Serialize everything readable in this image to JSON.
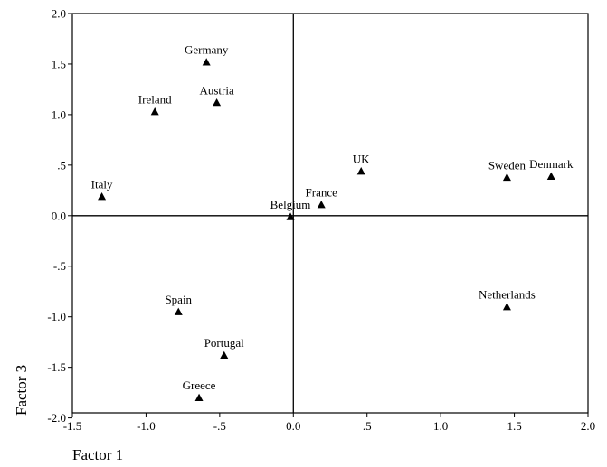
{
  "chart_data": {
    "type": "scatter",
    "xlabel": "Factor 1",
    "ylabel": "Factor 3",
    "xlim": [
      -1.5,
      2.0
    ],
    "ylim": [
      -1.95,
      2.0
    ],
    "x_ticks": [
      {
        "value": -1.5,
        "label": "-1.5"
      },
      {
        "value": -1.0,
        "label": "-1.0"
      },
      {
        "value": -0.5,
        "label": "-.5"
      },
      {
        "value": 0.0,
        "label": "0.0"
      },
      {
        "value": 0.5,
        "label": ".5"
      },
      {
        "value": 1.0,
        "label": "1.0"
      },
      {
        "value": 1.5,
        "label": "1.5"
      },
      {
        "value": 2.0,
        "label": "2.0"
      }
    ],
    "y_ticks": [
      {
        "value": 2.0,
        "label": "2.0"
      },
      {
        "value": 1.5,
        "label": "1.5"
      },
      {
        "value": 1.0,
        "label": "1.0"
      },
      {
        "value": 0.5,
        "label": ".5"
      },
      {
        "value": 0.0,
        "label": "0.0"
      },
      {
        "value": -0.5,
        "label": "-.5"
      },
      {
        "value": -1.0,
        "label": "-1.0"
      },
      {
        "value": -1.5,
        "label": "-1.5"
      },
      {
        "value": -2.0,
        "label": "-2.0"
      }
    ],
    "reference_lines": {
      "x": 0,
      "y": 0
    },
    "grid": false,
    "marker": "triangle",
    "points": [
      {
        "label": "Germany",
        "x": -0.59,
        "y": 1.52
      },
      {
        "label": "Austria",
        "x": -0.52,
        "y": 1.12
      },
      {
        "label": "Ireland",
        "x": -0.94,
        "y": 1.03
      },
      {
        "label": "Italy",
        "x": -1.3,
        "y": 0.19
      },
      {
        "label": "UK",
        "x": 0.46,
        "y": 0.44
      },
      {
        "label": "France",
        "x": 0.19,
        "y": 0.11
      },
      {
        "label": "Belgium",
        "x": -0.02,
        "y": -0.01
      },
      {
        "label": "Sweden",
        "x": 1.45,
        "y": 0.38
      },
      {
        "label": "Denmark",
        "x": 1.75,
        "y": 0.39
      },
      {
        "label": "Netherlands",
        "x": 1.45,
        "y": -0.9
      },
      {
        "label": "Spain",
        "x": -0.78,
        "y": -0.95
      },
      {
        "label": "Portugal",
        "x": -0.47,
        "y": -1.38
      },
      {
        "label": "Greece",
        "x": -0.64,
        "y": -1.8
      }
    ]
  }
}
